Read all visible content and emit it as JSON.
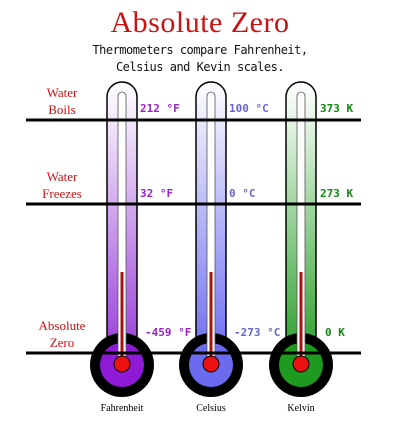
{
  "title": "Absolute Zero",
  "subtitle_lines": [
    "Thermometers compare Fahrenheit,",
    "Celsius and Kevin scales."
  ],
  "rows": [
    {
      "label_lines": [
        "Water",
        "Boils"
      ]
    },
    {
      "label_lines": [
        "Water",
        "Freezes"
      ]
    },
    {
      "label_lines": [
        "Absolute",
        "Zero"
      ]
    }
  ],
  "thermometers": [
    {
      "name": "Fahrenheit",
      "color": "#9a22cc",
      "readings": [
        "212 °F",
        "32 °F",
        "-459 °F"
      ]
    },
    {
      "name": "Celsius",
      "color": "#6666cc",
      "readings": [
        "100 °C",
        "0 °C",
        "-273 °C"
      ]
    },
    {
      "name": "Kelvin",
      "color": "#118811",
      "readings": [
        "373 K",
        "273 K",
        "0 K"
      ]
    }
  ],
  "colors": {
    "title": "#cc1111",
    "row_label": "#cc1111",
    "line": "#000000",
    "mercury": "#aa1111",
    "bulb_red": "#ee1111"
  }
}
